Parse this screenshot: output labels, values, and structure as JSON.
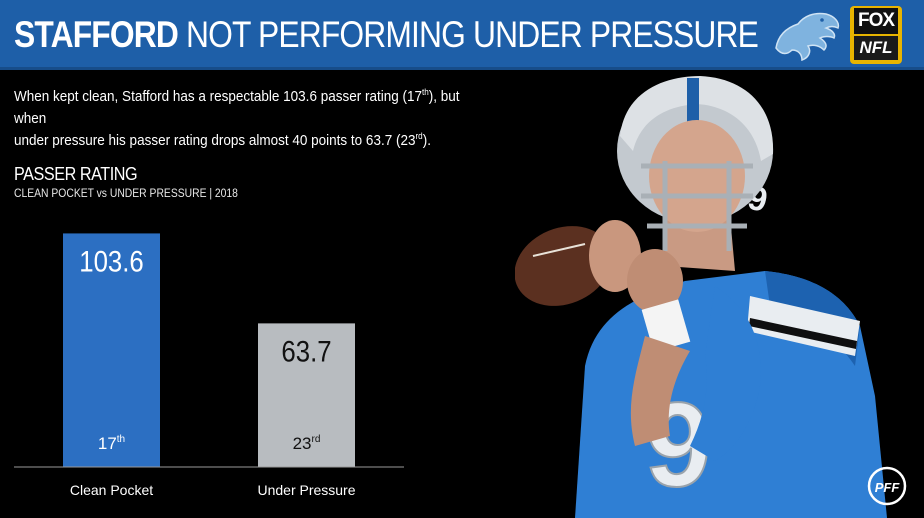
{
  "header": {
    "title_bold": "STAFFORD",
    "title_rest": "NOT PERFORMING UNDER PRESSURE",
    "bg_color": "#1e5fa8"
  },
  "logos": {
    "team": "detroit-lions-logo",
    "fox_top": "FOX",
    "fox_bottom": "NFL",
    "pff": "PFF"
  },
  "description": {
    "line1_a": "When kept clean, Stafford has a respectable 103.6 passer rating (17",
    "line1_sup": "th",
    "line1_b": "), but when",
    "line2_a": "under pressure his passer rating drops almost 40 points to 63.7 (23",
    "line2_sup": "rd",
    "line2_b": ")."
  },
  "chart_data": {
    "type": "bar",
    "title": "PASSER RATING",
    "subtitle": "CLEAN POCKET vs UNDER PRESSURE | 2018",
    "categories": [
      "Clean Pocket",
      "Under Pressure"
    ],
    "values": [
      103.6,
      63.7
    ],
    "value_labels": [
      "103.6",
      "63.7"
    ],
    "ranks": [
      {
        "num": "17",
        "suffix": "th"
      },
      {
        "num": "23",
        "suffix": "rd"
      }
    ],
    "colors": [
      "#2c6fc2",
      "#b8bcc0"
    ],
    "label_colors": [
      "#ffffff",
      "#111111"
    ],
    "ylim": [
      0,
      110
    ],
    "grid": false
  }
}
